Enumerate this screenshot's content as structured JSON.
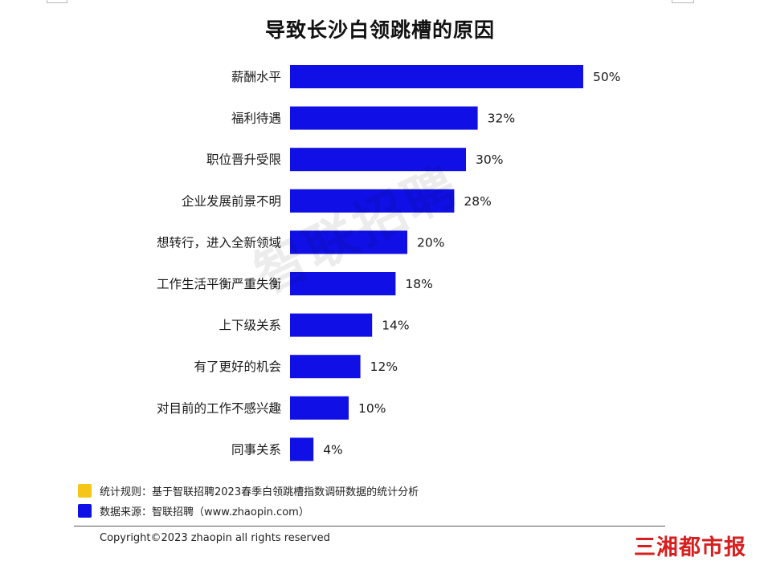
{
  "chart_data": {
    "type": "bar",
    "orientation": "horizontal",
    "title": "导致长沙白领跳槽的原因",
    "categories": [
      "薪酬水平",
      "福利待遇",
      "职位晋升受限",
      "企业发展前景不明",
      "想转行，进入全新领域",
      "工作生活平衡严重失衡",
      "上下级关系",
      "有了更好的机会",
      "对目前的工作不感兴趣",
      "同事关系"
    ],
    "values": [
      50,
      32,
      30,
      28,
      20,
      18,
      14,
      12,
      10,
      4
    ],
    "value_labels": [
      "50%",
      "32%",
      "30%",
      "28%",
      "20%",
      "18%",
      "14%",
      "12%",
      "10%",
      "4%"
    ],
    "xlim": [
      0,
      50
    ],
    "bar_color": "#1010e6",
    "grid": false,
    "legend": "bottom-left"
  },
  "legend": [
    {
      "text": "统计规则：基于智联招聘2023春季白领跳槽指数调研数据的统计分析",
      "color": "#f5c518"
    },
    {
      "text": "数据来源：智联招聘（www.zhaopin.com）",
      "color": "#1010e6"
    }
  ],
  "watermark": "智联招聘",
  "copyright": "Copyright©2023 zhaopin all rights reserved",
  "media_logo": "三湘都市报"
}
